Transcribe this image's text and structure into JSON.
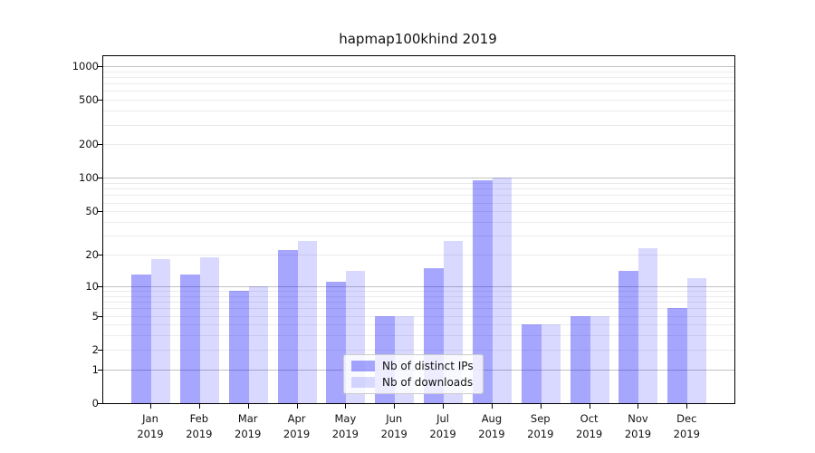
{
  "title": "hapmap100khind 2019",
  "chart_data": {
    "type": "bar",
    "title": "hapmap100khind 2019",
    "xlabel": "",
    "ylabel": "",
    "yscale": "log1p",
    "ylim": [
      0,
      1225
    ],
    "grid": true,
    "legend_position": "lower center inside plot",
    "y_ticks": [
      0,
      1,
      2,
      5,
      10,
      20,
      50,
      100,
      200,
      500,
      1000
    ],
    "grid_major": [
      1,
      10,
      100,
      1000
    ],
    "grid_minor": [
      2,
      3,
      4,
      5,
      6,
      7,
      8,
      9,
      20,
      30,
      40,
      50,
      60,
      70,
      80,
      90,
      200,
      300,
      400,
      500,
      600,
      700,
      800,
      900
    ],
    "categories": [
      "Jan 2019",
      "Feb 2019",
      "Mar 2019",
      "Apr 2019",
      "May 2019",
      "Jun 2019",
      "Jul 2019",
      "Aug 2019",
      "Sep 2019",
      "Oct 2019",
      "Nov 2019",
      "Dec 2019"
    ],
    "series": [
      {
        "name": "Nb of distinct IPs",
        "color": "rgba(0,0,255,0.35)",
        "values": [
          13,
          13,
          9,
          22,
          11,
          5,
          15,
          95,
          4,
          5,
          14,
          6
        ]
      },
      {
        "name": "Nb of downloads",
        "color": "rgba(0,0,255,0.15)",
        "values": [
          18,
          19,
          10,
          27,
          14,
          5,
          27,
          100,
          4,
          5,
          23,
          12
        ]
      }
    ]
  },
  "colors": {
    "bar_distinct_ips": "rgba(0,0,255,0.35)",
    "bar_downloads": "rgba(0,0,255,0.15)",
    "grid_major": "#c2c2c2",
    "grid_minor": "#ebebeb",
    "spine": "#000000",
    "text": "#111111"
  }
}
